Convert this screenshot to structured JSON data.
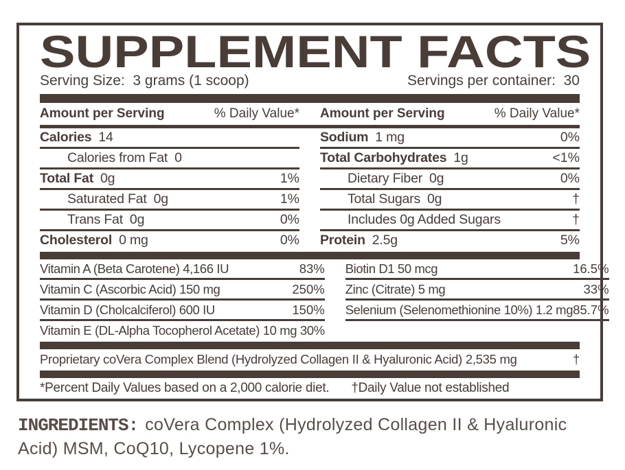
{
  "colors": {
    "ink": "#4a3c37",
    "ingredients_text": "#5a4d48"
  },
  "title": "SUPPLEMENT FACTS",
  "serving": {
    "size": "Serving Size:  3 grams (1 scoop)",
    "per_container": "Servings per container:  30"
  },
  "table": {
    "amount_header": "Amount per Serving",
    "value_header": "% Daily Value*",
    "left_main": [
      {
        "label": "Calories",
        "amount": "14",
        "value": ""
      },
      {
        "label": "Calories from Fat",
        "amount": "0",
        "value": ""
      },
      {
        "label": "Total Fat",
        "amount": "0g",
        "value": "1%"
      },
      {
        "label": "Saturated Fat",
        "amount": "0g",
        "value": "1%"
      },
      {
        "label": "Trans Fat",
        "amount": "0g",
        "value": "0%"
      },
      {
        "label": "Cholesterol",
        "amount": "0 mg",
        "value": "0%"
      }
    ],
    "right_main": [
      {
        "label": "Sodium",
        "amount": "1 mg",
        "value": "0%"
      },
      {
        "label": "Total Carbohydrates",
        "amount": "1g",
        "value": "<1%"
      },
      {
        "label": "Dietary Fiber",
        "amount": "0g",
        "value": "0%"
      },
      {
        "label": "Total Sugars",
        "amount": "0g",
        "value": "†"
      },
      {
        "label": "Includes 0g Added Sugars",
        "amount": "",
        "value": "†"
      },
      {
        "label": "Protein",
        "amount": "2.5g",
        "value": "5%"
      }
    ],
    "left_vitamins": [
      {
        "label": "Vitamin A (Beta Carotene) 4,166 IU",
        "value": "83%"
      },
      {
        "label": "Vitamin C (Ascorbic Acid) 150 mg",
        "value": "250%"
      },
      {
        "label": "Vitamin D (Cholcalciferol) 600 IU",
        "value": "150%"
      },
      {
        "label": "Vitamin E (DL-Alpha Tocopherol Acetate) 10 mg 30%",
        "value": ""
      }
    ],
    "right_vitamins": [
      {
        "label": "Biotin D1 50 mcg",
        "value": "16.5%"
      },
      {
        "label": "Zinc (Citrate) 5 mg",
        "value": "33%"
      },
      {
        "label": "Selenium (Selenomethionine 10%) 1.2 mg",
        "value": "85.7%"
      }
    ],
    "blend": {
      "label": "Proprietary coVera Complex Blend (Hydrolyzed Collagen II & Hyaluronic Acid) 2,535 mg",
      "value": "†"
    },
    "footnotes": {
      "percent": "*Percent Daily Values based on a 2,000 calorie diet.",
      "dagger": "†Daily Value not established"
    }
  },
  "ingredients": {
    "heading": "INGREDIENTS:",
    "text": "coVera Complex (Hydrolyzed Collagen II & Hyaluronic Acid) MSM, CoQ10, Lycopene 1%."
  }
}
